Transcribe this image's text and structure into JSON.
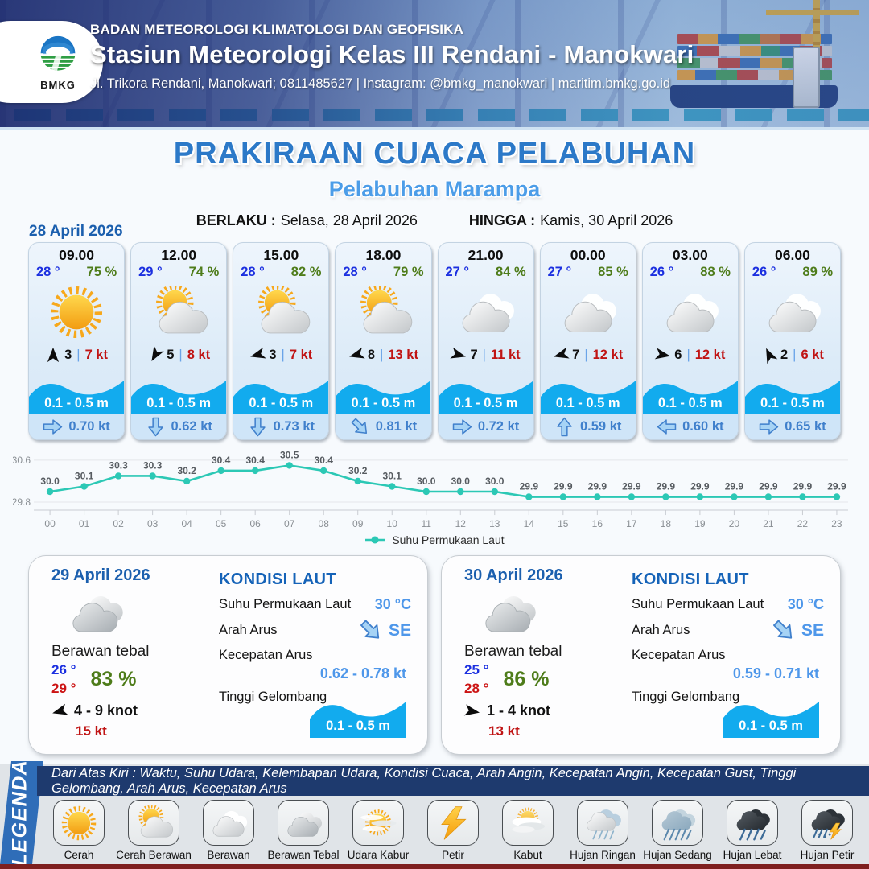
{
  "header": {
    "logo_text": "BMKG",
    "org": "BADAN METEOROLOGI KLIMATOLOGI DAN GEOFISIKA",
    "station": "Stasiun Meteorologi Kelas III Rendani - Manokwari",
    "contact": "Jl. Trikora Rendani, Manokwari; 0811485627 | Instagram: @bmkg_manokwari | maritim.bmkg.go.id"
  },
  "title": {
    "main": "PRAKIRAAN CUACA PELABUHAN",
    "subtitle": "Pelabuhan Marampa",
    "valid_from_label": "BERLAKU :",
    "valid_from": "Selasa, 28 April 2026",
    "valid_to_label": "HINGGA :",
    "valid_to": "Kamis, 30 April 2026"
  },
  "forecast": {
    "date": "28 April 2026",
    "cards": [
      {
        "time": "09.00",
        "temp": "28 °",
        "humidity": "75 %",
        "icon": "cerah",
        "wind_dir_deg": 0,
        "wind_speed": "3",
        "gust": "7 kt",
        "wave": "0.1 - 0.5 m",
        "current_to_deg": 90,
        "current": "0.70 kt"
      },
      {
        "time": "12.00",
        "temp": "29 °",
        "humidity": "74 %",
        "icon": "cerah-berawan",
        "wind_dir_deg": 210,
        "wind_speed": "5",
        "gust": "8 kt",
        "wave": "0.1 - 0.5 m",
        "current_to_deg": 180,
        "current": "0.62 kt"
      },
      {
        "time": "15.00",
        "temp": "28 °",
        "humidity": "82 %",
        "icon": "cerah-berawan",
        "wind_dir_deg": 255,
        "wind_speed": "3",
        "gust": "7 kt",
        "wave": "0.1 - 0.5 m",
        "current_to_deg": 180,
        "current": "0.73 kt"
      },
      {
        "time": "18.00",
        "temp": "28 °",
        "humidity": "79 %",
        "icon": "cerah-berawan",
        "wind_dir_deg": 255,
        "wind_speed": "8",
        "gust": "13 kt",
        "wave": "0.1 - 0.5 m",
        "current_to_deg": 135,
        "current": "0.81 kt"
      },
      {
        "time": "21.00",
        "temp": "27 °",
        "humidity": "84 %",
        "icon": "berawan",
        "wind_dir_deg": 105,
        "wind_speed": "7",
        "gust": "11 kt",
        "wave": "0.1 - 0.5 m",
        "current_to_deg": 90,
        "current": "0.72 kt"
      },
      {
        "time": "00.00",
        "temp": "27 °",
        "humidity": "85 %",
        "icon": "berawan",
        "wind_dir_deg": 255,
        "wind_speed": "7",
        "gust": "12 kt",
        "wave": "0.1 - 0.5 m",
        "current_to_deg": 0,
        "current": "0.59 kt"
      },
      {
        "time": "03.00",
        "temp": "26 °",
        "humidity": "88 %",
        "icon": "berawan",
        "wind_dir_deg": 100,
        "wind_speed": "6",
        "gust": "12 kt",
        "wave": "0.1 - 0.5 m",
        "current_to_deg": 270,
        "current": "0.60 kt"
      },
      {
        "time": "06.00",
        "temp": "26 °",
        "humidity": "89 %",
        "icon": "berawan",
        "wind_dir_deg": 335,
        "wind_speed": "2",
        "gust": "6 kt",
        "wave": "0.1 - 0.5 m",
        "current_to_deg": 90,
        "current": "0.65 kt"
      }
    ]
  },
  "chart_data": {
    "type": "line",
    "series_name": "Suhu Permukaan Laut",
    "x": [
      "00",
      "01",
      "02",
      "03",
      "04",
      "05",
      "06",
      "07",
      "08",
      "09",
      "10",
      "11",
      "12",
      "13",
      "14",
      "15",
      "16",
      "17",
      "18",
      "19",
      "20",
      "21",
      "22",
      "23"
    ],
    "values": [
      30.0,
      30.1,
      30.3,
      30.3,
      30.2,
      30.4,
      30.4,
      30.5,
      30.4,
      30.2,
      30.1,
      30.0,
      30.0,
      30.0,
      29.9,
      29.9,
      29.9,
      29.9,
      29.9,
      29.9,
      29.9,
      29.9,
      29.9,
      29.9
    ],
    "ylim": [
      29.8,
      30.6
    ],
    "yticks": [
      29.8,
      30.6
    ],
    "xlabel": "",
    "ylabel": "",
    "grid": true,
    "legend_position": "bottom",
    "line_color": "#2cc8b5"
  },
  "days": [
    {
      "date": "29 April 2026",
      "condition": "Berawan tebal",
      "icon": "berawan-tebal",
      "temp_min": "26 °",
      "temp_max": "29 °",
      "humidity": "83 %",
      "wind_dir_deg": 255,
      "wind_range": "4 - 9 knot",
      "gust": "15 kt",
      "sea": {
        "heading": "KONDISI LAUT",
        "sst_label": "Suhu Permukaan Laut",
        "sst": "30 °C",
        "current_dir_label": "Arah Arus",
        "current_dir": "SE",
        "current_to_deg": 135,
        "current_speed_label": "Kecepatan Arus",
        "current_speed": "0.62  - 0.78 kt",
        "wave_label": "Tinggi Gelombang",
        "wave": "0.1 - 0.5 m"
      }
    },
    {
      "date": "30 April 2026",
      "condition": "Berawan tebal",
      "icon": "berawan-tebal",
      "temp_min": "25 °",
      "temp_max": "28 °",
      "humidity": "86 %",
      "wind_dir_deg": 100,
      "wind_range": "1 - 4 knot",
      "gust": "13 kt",
      "sea": {
        "heading": "KONDISI LAUT",
        "sst_label": "Suhu Permukaan Laut",
        "sst": "30 °C",
        "current_dir_label": "Arah Arus",
        "current_dir": "SE",
        "current_to_deg": 135,
        "current_speed_label": "Kecepatan Arus",
        "current_speed": "0.59 - 0.71 kt",
        "wave_label": "Tinggi Gelombang",
        "wave": "0.1 - 0.5 m"
      }
    }
  ],
  "legend": {
    "title": "LEGENDA",
    "description": "Dari Atas Kiri : Waktu, Suhu Udara, Kelembapan Udara, Kondisi Cuaca, Arah Angin, Kecepatan Angin, Kecepatan Gust, Tinggi Gelombang, Arah Arus, Kecepatan Arus",
    "items": [
      {
        "label": "Cerah",
        "icon": "cerah"
      },
      {
        "label": "Cerah Berawan",
        "icon": "cerah-berawan"
      },
      {
        "label": "Berawan",
        "icon": "berawan"
      },
      {
        "label": "Berawan Tebal",
        "icon": "berawan-tebal"
      },
      {
        "label": "Udara Kabur",
        "icon": "udara-kabur"
      },
      {
        "label": "Petir",
        "icon": "petir"
      },
      {
        "label": "Kabut",
        "icon": "kabut"
      },
      {
        "label": "Hujan Ringan",
        "icon": "hujan-ringan"
      },
      {
        "label": "Hujan Sedang",
        "icon": "hujan-sedang"
      },
      {
        "label": "Hujan Lebat",
        "icon": "hujan-lebat"
      },
      {
        "label": "Hujan Petir",
        "icon": "hujan-petir"
      }
    ]
  },
  "colors": {
    "title_blue": "#2c79c8",
    "subtitle_blue": "#4c9de8",
    "date_blue": "#1b5fae",
    "temp_blue": "#1b2fe0",
    "temp_max_red": "#cc1414",
    "humidity_green": "#4e7c1a",
    "gust_red": "#c01414",
    "wave_cyan": "#12abee",
    "current_blue": "#4e97ea",
    "chart_line_teal": "#2cc8b5",
    "legend_navy": "#1e3a6e",
    "legend_ribbon_blue": "#2f6db8"
  }
}
